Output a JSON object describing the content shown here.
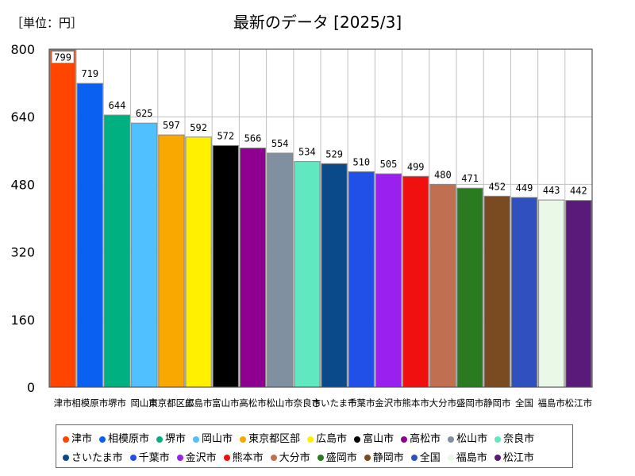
{
  "chart_data": {
    "type": "bar",
    "title": "最新のデータ [2025/3]",
    "unit_label": "［単位：円］",
    "ylim": [
      0,
      800
    ],
    "yticks": [
      "0",
      "160",
      "320",
      "480",
      "640",
      "800"
    ],
    "categories": [
      "津市",
      "相模原市",
      "堺市",
      "岡山市",
      "東京都区部",
      "広島市",
      "富山市",
      "高松市",
      "松山市",
      "奈良市",
      "さいたま市",
      "千葉市",
      "金沢市",
      "熊本市",
      "大分市",
      "盛岡市",
      "静岡市",
      "全国",
      "福島市",
      "松江市"
    ],
    "values": [
      799,
      719,
      644,
      625,
      597,
      592,
      572,
      566,
      554,
      534,
      529,
      510,
      505,
      499,
      480,
      471,
      452,
      449,
      443,
      442
    ],
    "value_labels": [
      "799",
      "719",
      "644",
      "625",
      "597",
      "592",
      "572",
      "566",
      "554",
      "534",
      "529",
      "510",
      "505",
      "499",
      "480",
      "471",
      "452",
      "449",
      "443",
      "442"
    ],
    "colors": [
      "#ff4500",
      "#0a60f0",
      "#00b080",
      "#50c0ff",
      "#f8a800",
      "#fff000",
      "#000000",
      "#900090",
      "#8090a0",
      "#60e8c0",
      "#0a4a8a",
      "#2050e8",
      "#9a20f0",
      "#f01010",
      "#c07050",
      "#2a7a20",
      "#7a4a20",
      "#3050c0",
      "#eaf8e8",
      "#5a1a7a"
    ],
    "legend_position": "bottom"
  }
}
